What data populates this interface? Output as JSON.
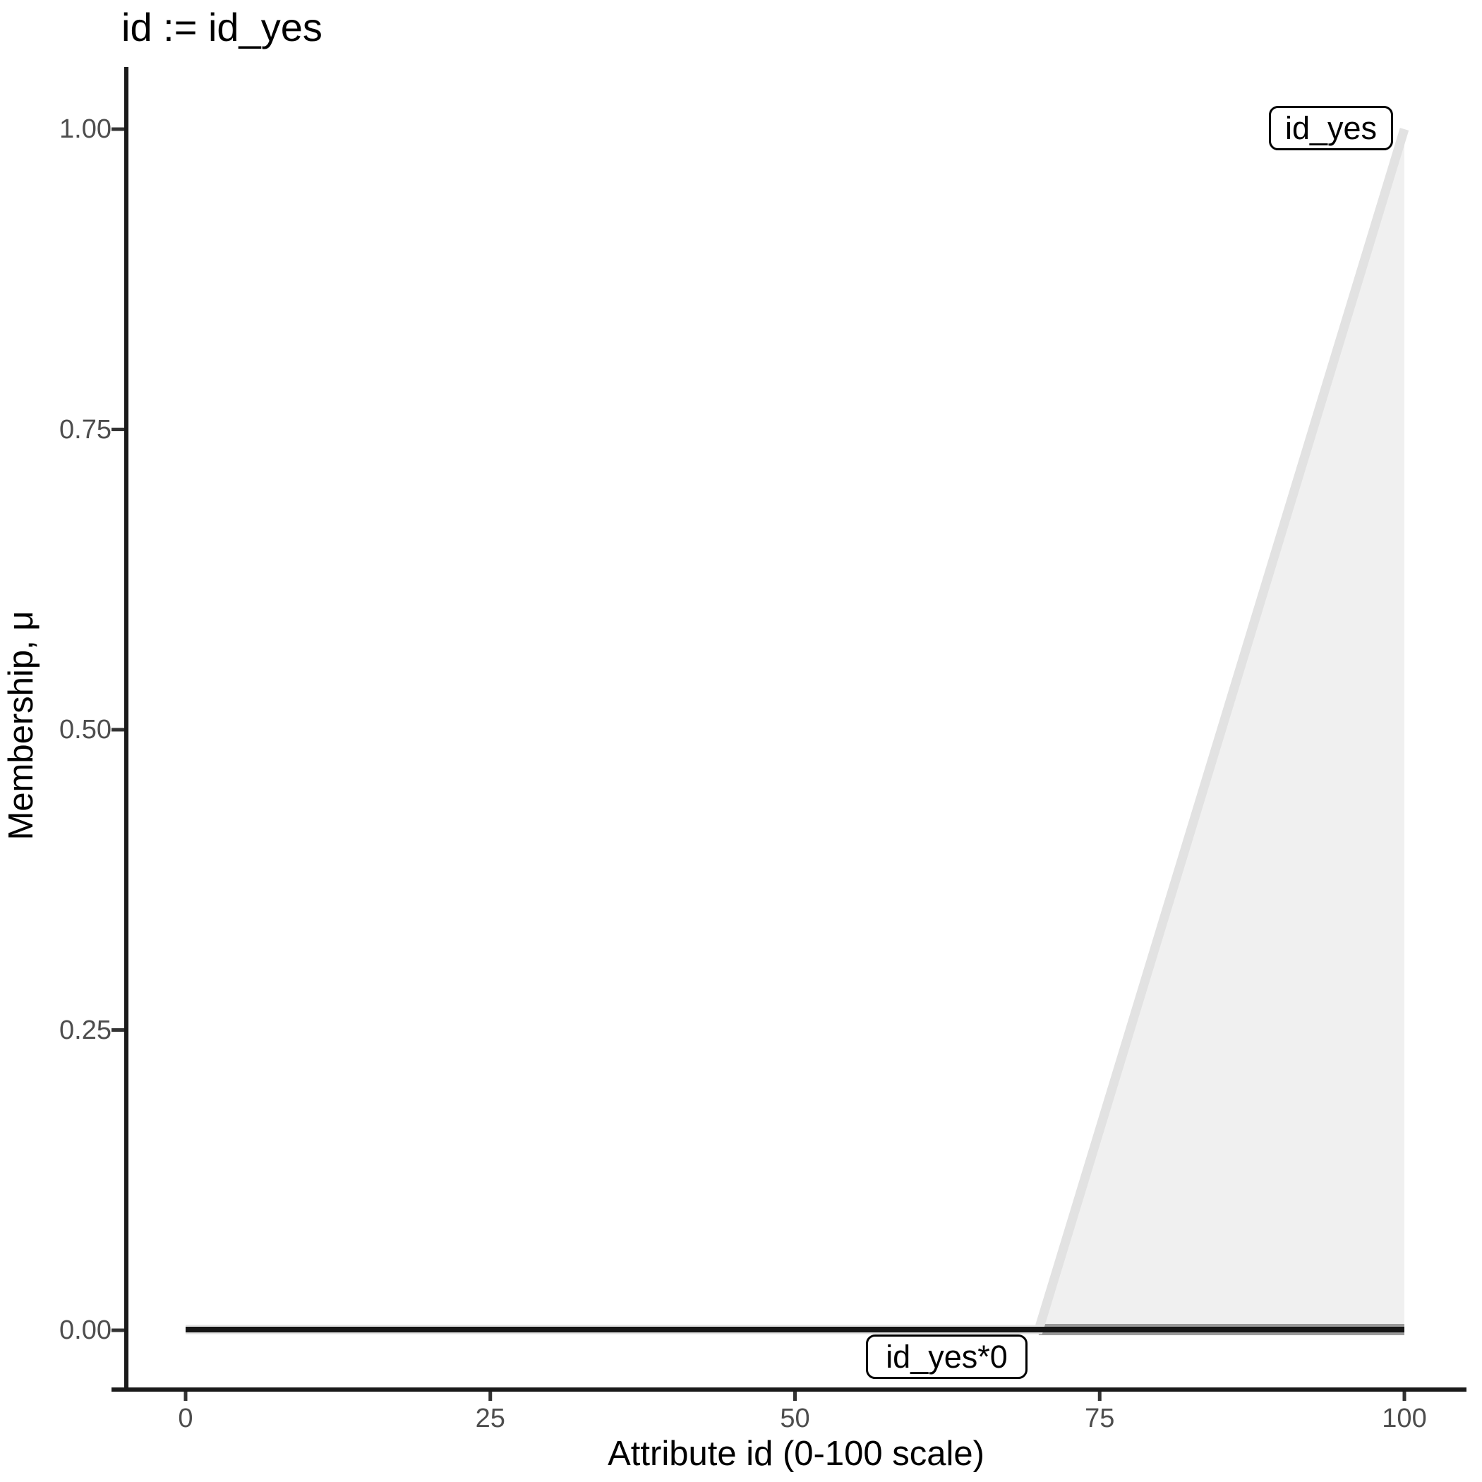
{
  "title": "id := id_yes",
  "chart_data": {
    "type": "area",
    "title": "id := id_yes",
    "xlabel": "Attribute id (0-100 scale)",
    "ylabel": "Membership, μ",
    "xlim": [
      0,
      100
    ],
    "ylim": [
      0,
      1
    ],
    "grid": false,
    "legend_position": "none",
    "x_ticks": [
      {
        "label": "0",
        "value": 0
      },
      {
        "label": "25",
        "value": 25
      },
      {
        "label": "50",
        "value": 50
      },
      {
        "label": "75",
        "value": 75
      },
      {
        "label": "100",
        "value": 100
      }
    ],
    "y_ticks": [
      {
        "label": "1.00",
        "value": 1.0
      },
      {
        "label": "0.75",
        "value": 0.75
      },
      {
        "label": "0.50",
        "value": 0.5
      },
      {
        "label": "0.25",
        "value": 0.25
      },
      {
        "label": "0.00",
        "value": 0.0
      }
    ],
    "series": [
      {
        "name": "id_yes",
        "points": [
          [
            0,
            0
          ],
          [
            70,
            0
          ],
          [
            100,
            1
          ]
        ],
        "line_color": "#e2e2e2",
        "line_width": 13,
        "fill_color": "#f0f0f0",
        "baseline_edge_color": "#9a9a9a",
        "baseline_edge_range": [
          70,
          100
        ],
        "baseline_edge_width": 16
      },
      {
        "name": "id_yes*0",
        "points": [
          [
            0,
            0
          ],
          [
            100,
            0
          ]
        ],
        "line_color": "#151515",
        "line_width": 8,
        "fill_color": null
      }
    ],
    "annotations": [
      {
        "text": "id_yes",
        "x": 94,
        "y": 1.0
      },
      {
        "text": "id_yes*0",
        "x": 53.5,
        "y": -0.03
      }
    ],
    "colors": {
      "axis_line": "#1a1a1a",
      "tick_mark": "#333333",
      "tick_label": "#4d4d4d",
      "text": "#000000",
      "panel_background": "#ffffff"
    }
  }
}
